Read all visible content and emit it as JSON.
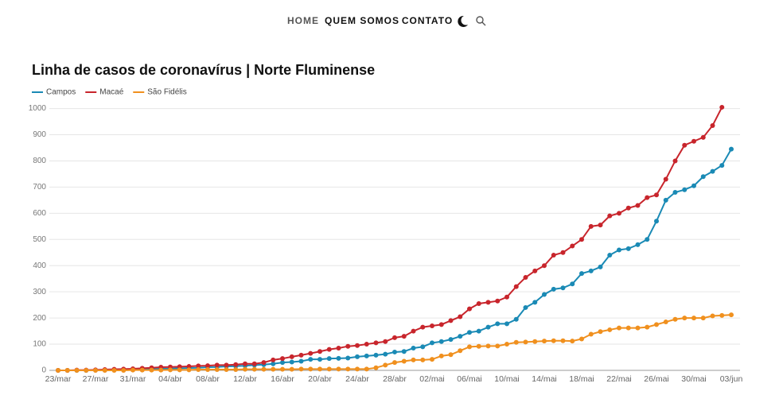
{
  "nav": {
    "items": [
      "HOME",
      "QUEM SOMOS",
      "CONTATO"
    ]
  },
  "chart_data": {
    "type": "line",
    "title": "Linha de casos de coronavírus | Norte Fluminense",
    "categories": [
      "23/mar",
      null,
      null,
      null,
      "27/mar",
      null,
      null,
      null,
      "31/mar",
      null,
      null,
      null,
      "04/abr",
      null,
      null,
      null,
      "08/abr",
      null,
      null,
      null,
      "12/abr",
      null,
      null,
      null,
      "16/abr",
      null,
      null,
      null,
      "20/abr",
      null,
      null,
      null,
      "24/abr",
      null,
      null,
      null,
      "28/abr",
      null,
      null,
      null,
      "02/mai",
      null,
      null,
      null,
      "06/mai",
      null,
      null,
      null,
      "10/mai",
      null,
      null,
      null,
      "14/mai",
      null,
      null,
      null,
      "18/mai",
      null,
      null,
      null,
      "22/mai",
      null,
      null,
      null,
      "26/mai",
      null,
      null,
      null,
      "30/mai",
      null,
      null,
      null,
      "03/jun"
    ],
    "series": [
      {
        "name": "Campos",
        "color": "#1a8ab5",
        "values": [
          0,
          0,
          0,
          0,
          1,
          1,
          2,
          2,
          3,
          4,
          5,
          6,
          7,
          8,
          9,
          10,
          12,
          13,
          15,
          16,
          18,
          20,
          22,
          25,
          30,
          32,
          35,
          42,
          42,
          45,
          46,
          47,
          52,
          55,
          58,
          62,
          70,
          72,
          85,
          90,
          105,
          110,
          118,
          130,
          145,
          150,
          165,
          178,
          178,
          195,
          240,
          260,
          290,
          310,
          315,
          330,
          370,
          380,
          395,
          440,
          460,
          465,
          480,
          500,
          570,
          650,
          680,
          690,
          705,
          740,
          760,
          783,
          845
        ]
      },
      {
        "name": "Macaé",
        "color": "#c8252c",
        "values": [
          0,
          0,
          1,
          1,
          2,
          3,
          4,
          5,
          6,
          8,
          10,
          12,
          13,
          14,
          15,
          17,
          18,
          20,
          20,
          22,
          25,
          25,
          30,
          40,
          45,
          52,
          58,
          65,
          72,
          80,
          85,
          92,
          95,
          100,
          105,
          110,
          125,
          130,
          150,
          165,
          170,
          175,
          190,
          205,
          235,
          255,
          260,
          265,
          280,
          320,
          355,
          380,
          400,
          440,
          450,
          475,
          500,
          550,
          555,
          590,
          600,
          620,
          630,
          660,
          670,
          730,
          800,
          860,
          875,
          890,
          935,
          1005,
          null
        ]
      },
      {
        "name": "São Fidélis",
        "color": "#f0901e",
        "values": [
          0,
          0,
          0,
          0,
          0,
          0,
          0,
          0,
          1,
          1,
          1,
          1,
          2,
          2,
          2,
          3,
          3,
          3,
          3,
          3,
          4,
          4,
          4,
          4,
          4,
          4,
          5,
          5,
          5,
          5,
          5,
          5,
          5,
          5,
          10,
          20,
          30,
          35,
          40,
          40,
          42,
          55,
          60,
          75,
          90,
          92,
          93,
          93,
          100,
          107,
          108,
          110,
          112,
          113,
          113,
          112,
          120,
          138,
          148,
          155,
          162,
          162,
          162,
          165,
          175,
          185,
          195,
          200,
          200,
          200,
          208,
          210,
          212
        ]
      }
    ],
    "ylim": [
      0,
      1020
    ],
    "yticks": [
      0,
      100,
      200,
      300,
      400,
      500,
      600,
      700,
      800,
      900,
      1000
    ],
    "grid": true,
    "legend": "top-left"
  }
}
